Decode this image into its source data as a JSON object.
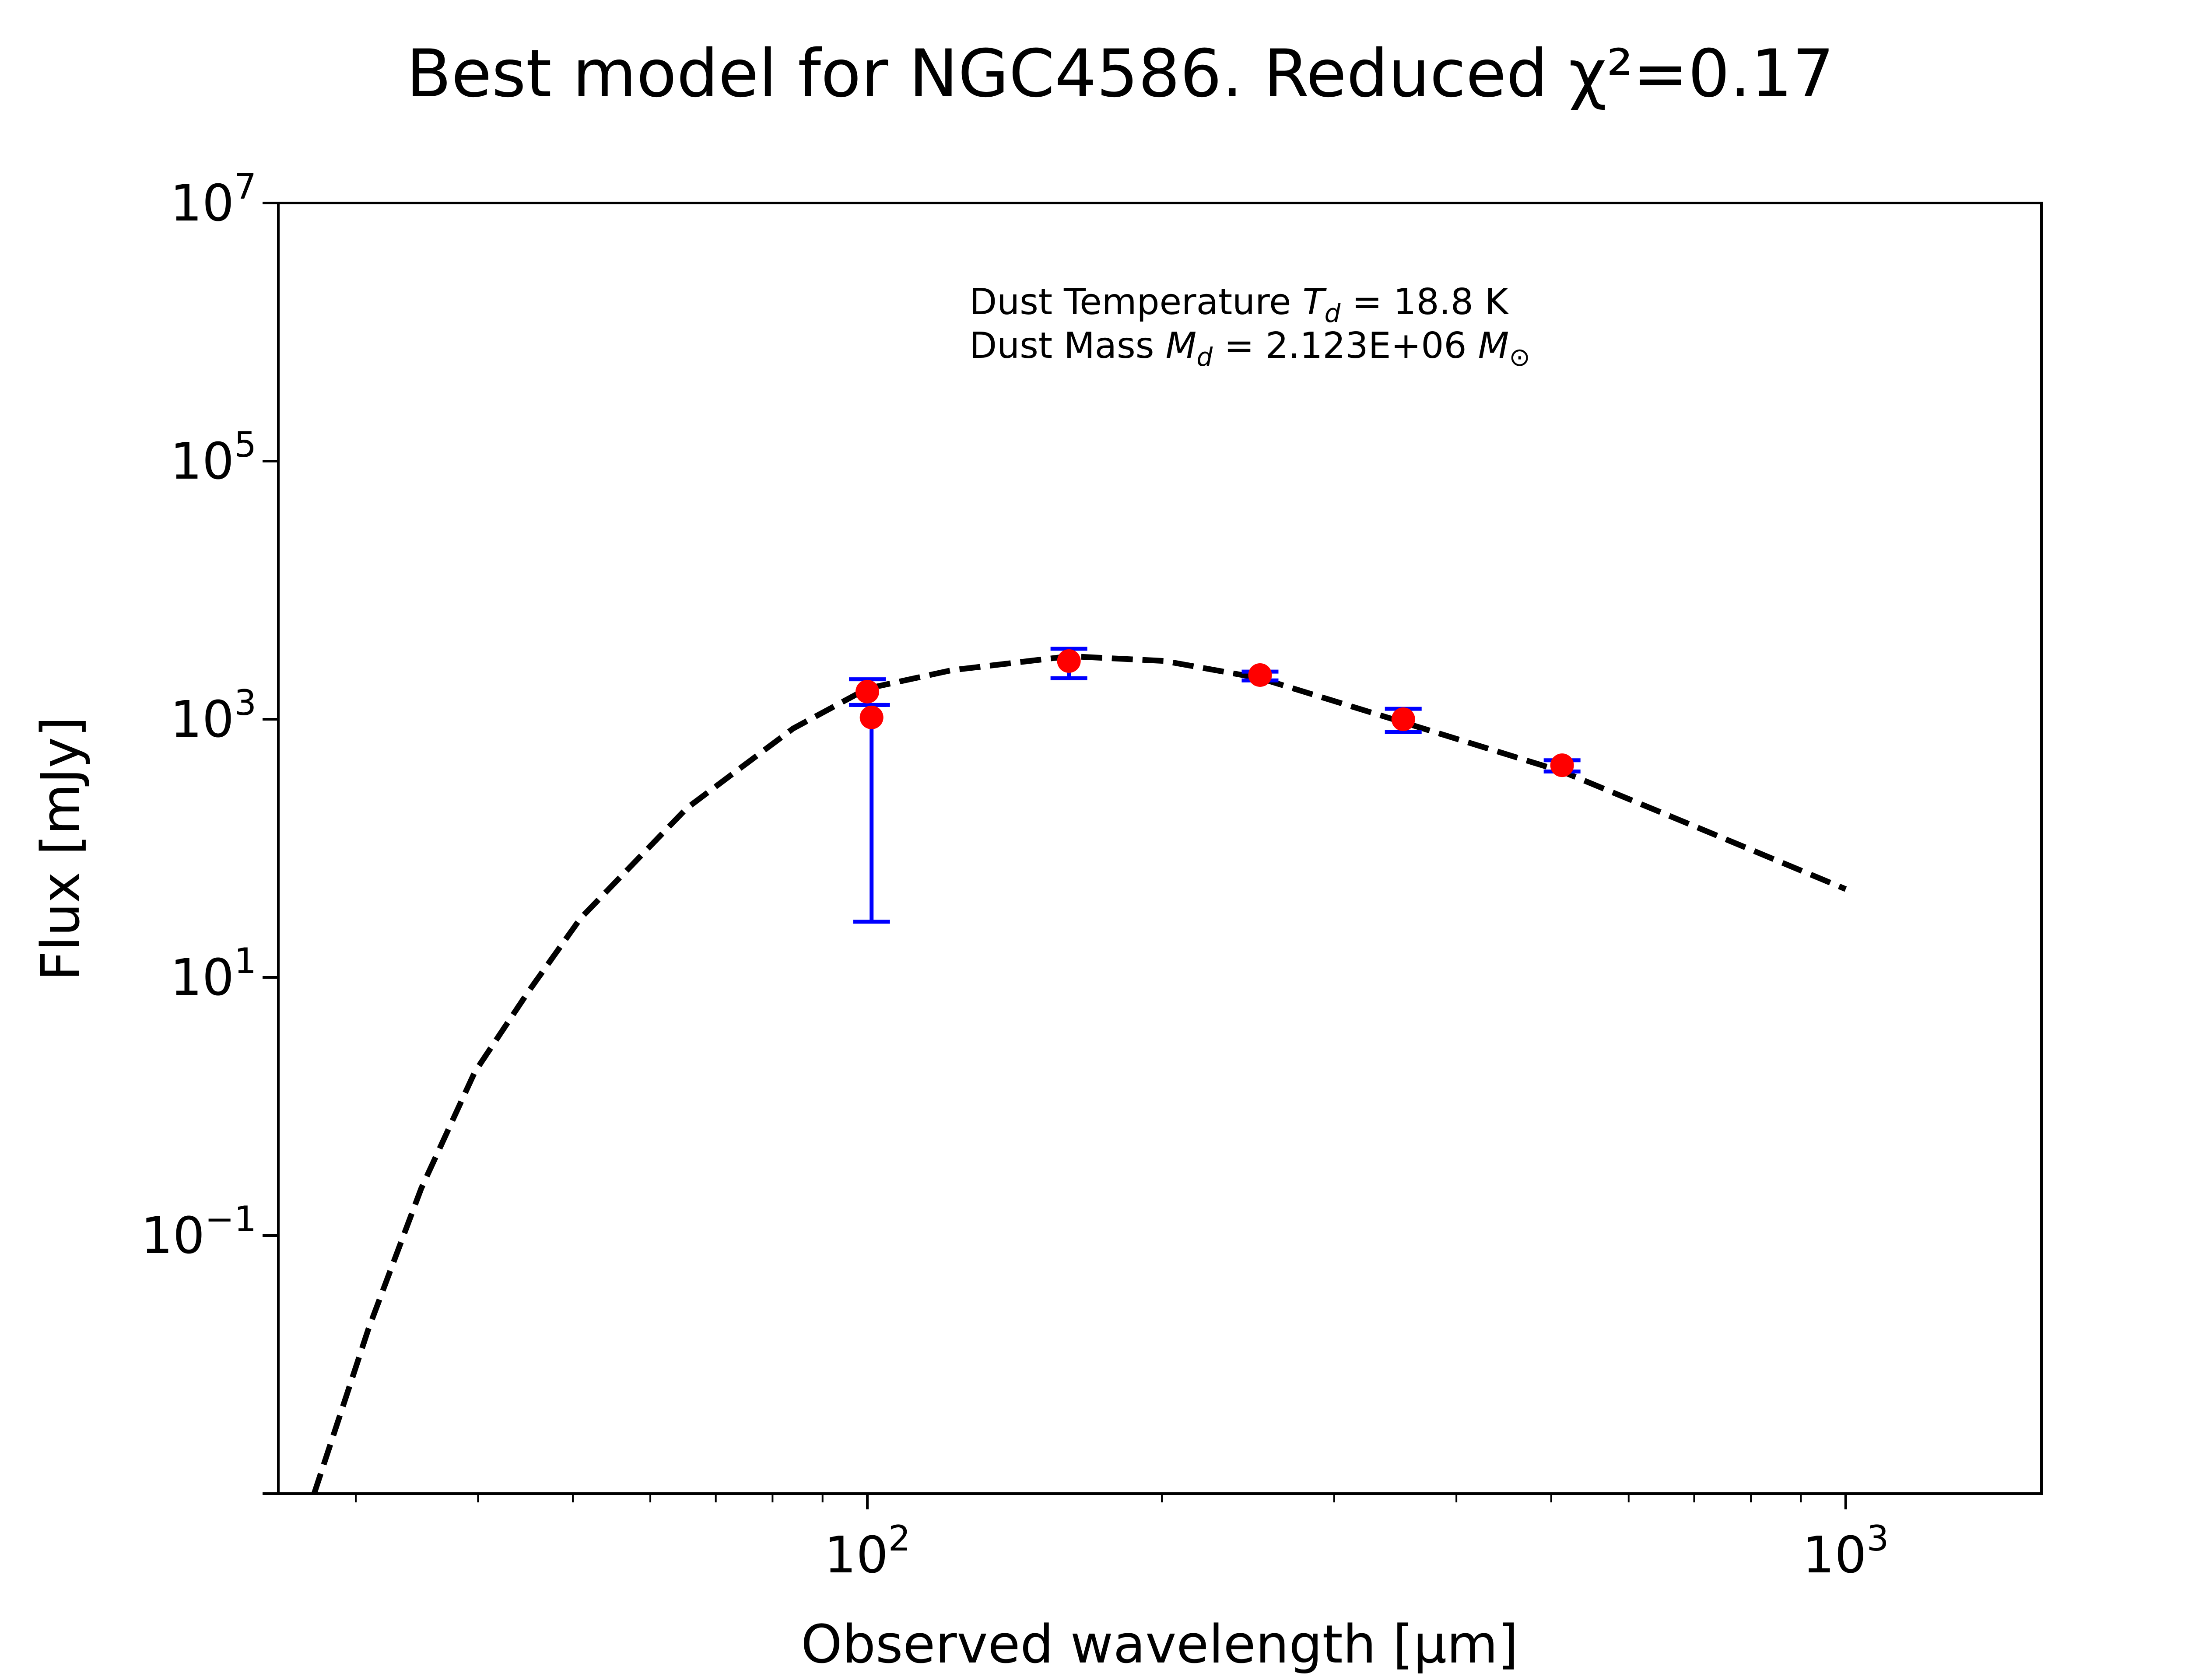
{
  "chart_data": {
    "type": "scatter",
    "title": "Best model for NGC4586. Reduced χ²=0.17",
    "xlabel": "Observed wavelength [μm]",
    "ylabel": "Flux [mJy]",
    "xscale": "log",
    "yscale": "log",
    "xlim": [
      25,
      1585
    ],
    "ylim": [
      0.001,
      10000000
    ],
    "x_tick_labels": [
      {
        "value": 100,
        "base": "10",
        "exp": "2"
      },
      {
        "value": 1000,
        "base": "10",
        "exp": "3"
      }
    ],
    "y_tick_labels": [
      {
        "value": 10000000,
        "base": "10",
        "exp": "7"
      },
      {
        "value": 100000,
        "base": "10",
        "exp": "5"
      },
      {
        "value": 1000,
        "base": "10",
        "exp": "3"
      },
      {
        "value": 10,
        "base": "10",
        "exp": "1"
      },
      {
        "value": 0.1,
        "base": "10",
        "exp": "−1"
      }
    ],
    "grid": false,
    "annotation": {
      "line1": {
        "prefix": "Dust Temperature ",
        "sym": "T",
        "sub": "d",
        "suffix": " = 18.8 K"
      },
      "line2": {
        "prefix": "Dust Mass ",
        "sym": "M",
        "sub": "d",
        "suffix": " = 2.123E+06 ",
        "unit": "M",
        "unit_sub": "⊙"
      }
    },
    "colors": {
      "model": "#000000",
      "points": "#ff0000",
      "errorbars": "#0000ff"
    },
    "model": {
      "style": "dashed",
      "x": [
        27.2,
        30.9,
        35.0,
        39.7,
        45.0,
        50.9,
        65.4,
        84.0,
        100,
        122,
        161,
        201,
        252,
        353,
        513,
        701,
        1000
      ],
      "y": [
        0.001,
        0.0188,
        0.232,
        1.85,
        7.69,
        28.6,
        205,
        849,
        1730,
        2400,
        3080,
        2830,
        2080,
        946,
        394,
        148,
        48.3
      ]
    },
    "observations": [
      {
        "x": 100,
        "y": 1637,
        "ylow": 1290,
        "yhigh": 2040
      },
      {
        "x": 101,
        "y": 1033,
        "ylow": 27,
        "yhigh": 1290
      },
      {
        "x": 160.7,
        "y": 2825,
        "ylow": 2080,
        "yhigh": 3516
      },
      {
        "x": 252,
        "y": 2200,
        "ylow": 2000,
        "yhigh": 2340
      },
      {
        "x": 353,
        "y": 1000,
        "ylow": 794,
        "yhigh": 1205
      },
      {
        "x": 513,
        "y": 440,
        "ylow": 394,
        "yhigh": 481
      }
    ]
  }
}
